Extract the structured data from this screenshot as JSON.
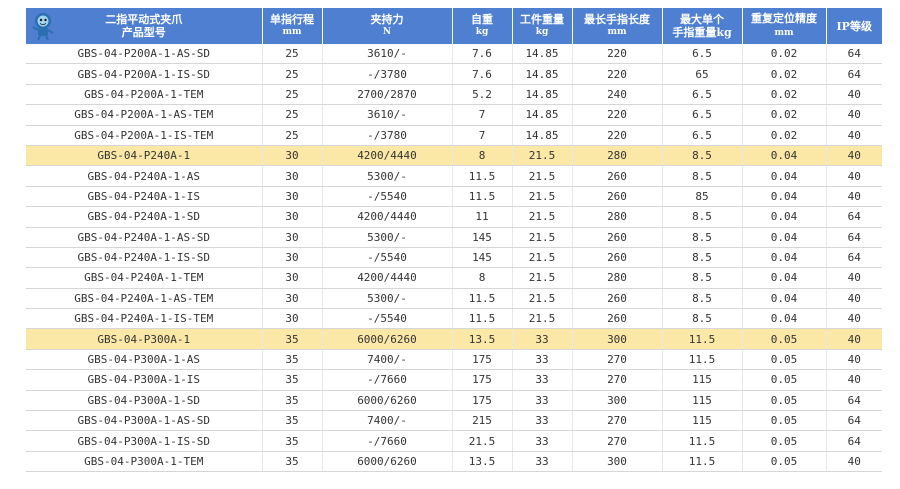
{
  "header": {
    "model": [
      "二指平动式夹爪",
      "产品型号"
    ],
    "stroke": [
      "单指行程",
      "mm"
    ],
    "force": [
      "夹持力",
      "N"
    ],
    "weight": [
      "自重",
      "kg"
    ],
    "workpiece": [
      "工件重量",
      "kg"
    ],
    "finger_len": [
      "最长手指长度",
      "mm"
    ],
    "finger_wt": [
      "最大单个",
      "手指重量kg"
    ],
    "repeat": [
      "重复定位精度",
      "mm"
    ],
    "ip": [
      "IP等级",
      ""
    ]
  },
  "rows": [
    {
      "model": "GBS-04-P200A-1-AS-SD",
      "stroke": "25",
      "force": "3610/-",
      "weight": "7.6",
      "workpiece": "14.85",
      "finger_len": "220",
      "finger_wt": "6.5",
      "repeat": "0.02",
      "ip": "64",
      "hl": false
    },
    {
      "model": "GBS-04-P200A-1-IS-SD",
      "stroke": "25",
      "force": "-/3780",
      "weight": "7.6",
      "workpiece": "14.85",
      "finger_len": "220",
      "finger_wt": "65",
      "repeat": "0.02",
      "ip": "64",
      "hl": false
    },
    {
      "model": "GBS-04-P200A-1-TEM",
      "stroke": "25",
      "force": "2700/2870",
      "weight": "5.2",
      "workpiece": "14.85",
      "finger_len": "240",
      "finger_wt": "6.5",
      "repeat": "0.02",
      "ip": "40",
      "hl": false
    },
    {
      "model": "GBS-04-P200A-1-AS-TEM",
      "stroke": "25",
      "force": "3610/-",
      "weight": "7",
      "workpiece": "14.85",
      "finger_len": "220",
      "finger_wt": "6.5",
      "repeat": "0.02",
      "ip": "40",
      "hl": false
    },
    {
      "model": "GBS-04-P200A-1-IS-TEM",
      "stroke": "25",
      "force": "-/3780",
      "weight": "7",
      "workpiece": "14.85",
      "finger_len": "220",
      "finger_wt": "6.5",
      "repeat": "0.02",
      "ip": "40",
      "hl": false
    },
    {
      "model": "GBS-04-P240A-1",
      "stroke": "30",
      "force": "4200/4440",
      "weight": "8",
      "workpiece": "21.5",
      "finger_len": "280",
      "finger_wt": "8.5",
      "repeat": "0.04",
      "ip": "40",
      "hl": true
    },
    {
      "model": "GBS-04-P240A-1-AS",
      "stroke": "30",
      "force": "5300/-",
      "weight": "11.5",
      "workpiece": "21.5",
      "finger_len": "260",
      "finger_wt": "8.5",
      "repeat": "0.04",
      "ip": "40",
      "hl": false
    },
    {
      "model": "GBS-04-P240A-1-IS",
      "stroke": "30",
      "force": "-/5540",
      "weight": "11.5",
      "workpiece": "21.5",
      "finger_len": "260",
      "finger_wt": "85",
      "repeat": "0.04",
      "ip": "40",
      "hl": false
    },
    {
      "model": "GBS-04-P240A-1-SD",
      "stroke": "30",
      "force": "4200/4440",
      "weight": "11",
      "workpiece": "21.5",
      "finger_len": "280",
      "finger_wt": "8.5",
      "repeat": "0.04",
      "ip": "64",
      "hl": false
    },
    {
      "model": "GBS-04-P240A-1-AS-SD",
      "stroke": "30",
      "force": "5300/-",
      "weight": "145",
      "workpiece": "21.5",
      "finger_len": "260",
      "finger_wt": "8.5",
      "repeat": "0.04",
      "ip": "64",
      "hl": false
    },
    {
      "model": "GBS-04-P240A-1-IS-SD",
      "stroke": "30",
      "force": "-/5540",
      "weight": "145",
      "workpiece": "21.5",
      "finger_len": "260",
      "finger_wt": "8.5",
      "repeat": "0.04",
      "ip": "64",
      "hl": false
    },
    {
      "model": "GBS-04-P240A-1-TEM",
      "stroke": "30",
      "force": "4200/4440",
      "weight": "8",
      "workpiece": "21.5",
      "finger_len": "280",
      "finger_wt": "8.5",
      "repeat": "0.04",
      "ip": "40",
      "hl": false
    },
    {
      "model": "GBS-04-P240A-1-AS-TEM",
      "stroke": "30",
      "force": "5300/-",
      "weight": "11.5",
      "workpiece": "21.5",
      "finger_len": "260",
      "finger_wt": "8.5",
      "repeat": "0.04",
      "ip": "40",
      "hl": false
    },
    {
      "model": "GBS-04-P240A-1-IS-TEM",
      "stroke": "30",
      "force": "-/5540",
      "weight": "11.5",
      "workpiece": "21.5",
      "finger_len": "260",
      "finger_wt": "8.5",
      "repeat": "0.04",
      "ip": "40",
      "hl": false
    },
    {
      "model": "GBS-04-P300A-1",
      "stroke": "35",
      "force": "6000/6260",
      "weight": "13.5",
      "workpiece": "33",
      "finger_len": "300",
      "finger_wt": "11.5",
      "repeat": "0.05",
      "ip": "40",
      "hl": true
    },
    {
      "model": "GBS-04-P300A-1-AS",
      "stroke": "35",
      "force": "7400/-",
      "weight": "175",
      "workpiece": "33",
      "finger_len": "270",
      "finger_wt": "11.5",
      "repeat": "0.05",
      "ip": "40",
      "hl": false
    },
    {
      "model": "GBS-04-P300A-1-IS",
      "stroke": "35",
      "force": "-/7660",
      "weight": "175",
      "workpiece": "33",
      "finger_len": "270",
      "finger_wt": "115",
      "repeat": "0.05",
      "ip": "40",
      "hl": false
    },
    {
      "model": "GBS-04-P300A-1-SD",
      "stroke": "35",
      "force": "6000/6260",
      "weight": "175",
      "workpiece": "33",
      "finger_len": "300",
      "finger_wt": "115",
      "repeat": "0.05",
      "ip": "64",
      "hl": false
    },
    {
      "model": "GBS-04-P300A-1-AS-SD",
      "stroke": "35",
      "force": "7400/-",
      "weight": "215",
      "workpiece": "33",
      "finger_len": "270",
      "finger_wt": "115",
      "repeat": "0.05",
      "ip": "64",
      "hl": false
    },
    {
      "model": "GBS-04-P300A-1-IS-SD",
      "stroke": "35",
      "force": "-/7660",
      "weight": "21.5",
      "workpiece": "33",
      "finger_len": "270",
      "finger_wt": "11.5",
      "repeat": "0.05",
      "ip": "64",
      "hl": false
    },
    {
      "model": "GBS-04-P300A-1-TEM",
      "stroke": "35",
      "force": "6000/6260",
      "weight": "13.5",
      "workpiece": "33",
      "finger_len": "300",
      "finger_wt": "11.5",
      "repeat": "0.05",
      "ip": "40",
      "hl": false
    }
  ],
  "colors": {
    "header_bg": "#4f7fd1",
    "highlight": "#fce8a6"
  },
  "icons": {
    "logo": "mascot-logo-icon"
  }
}
